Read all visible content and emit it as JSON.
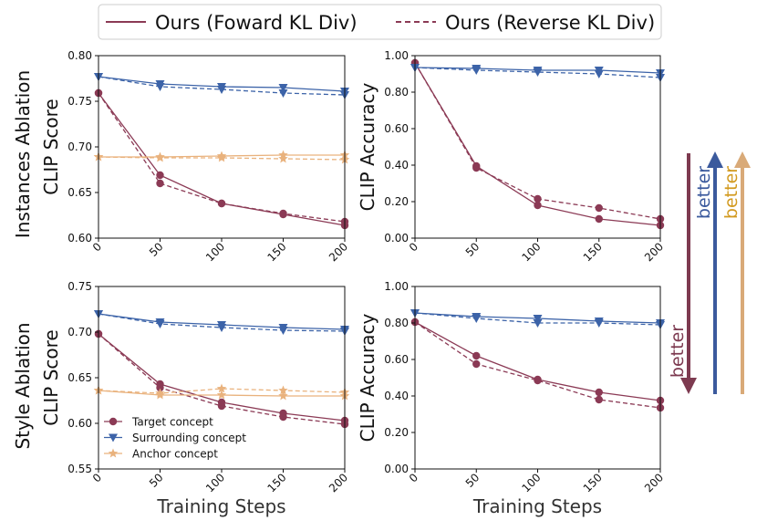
{
  "legend": {
    "items": [
      {
        "label": "Ours (Foward KL Div)",
        "style": "solid"
      },
      {
        "label": "Ours (Reverse KL Div)",
        "style": "dashed"
      }
    ]
  },
  "row_labels": [
    "Instances Ablation",
    "Style Ablation"
  ],
  "colors": {
    "target": "#8b3a55",
    "surrounding": "#3c63a8",
    "anchor": "#e9b27d",
    "arrow_target": "#7d3a50",
    "arrow_surrounding": "#3b5a9d",
    "arrow_anchor": "#d9aa78",
    "better_anchor_text": "#d29a20"
  },
  "better_labels": {
    "target": "better",
    "surrounding": "better",
    "anchor": "better"
  },
  "chart_data": [
    {
      "type": "line",
      "row": "Instances Ablation",
      "xlabel": "",
      "ylabel": "CLIP Score",
      "x": [
        0,
        50,
        100,
        150,
        200
      ],
      "xticks": [
        "0",
        "50",
        "100",
        "150",
        "200"
      ],
      "ylim": [
        0.6,
        0.8
      ],
      "yticks": [
        "0.60",
        "0.65",
        "0.70",
        "0.75",
        "0.80"
      ],
      "series": [
        {
          "name": "Target concept",
          "concept": "target",
          "style": "solid",
          "values": [
            0.759,
            0.669,
            0.638,
            0.626,
            0.614
          ]
        },
        {
          "name": "Target concept",
          "concept": "target",
          "style": "dashed",
          "values": [
            0.759,
            0.66,
            0.638,
            0.627,
            0.618
          ]
        },
        {
          "name": "Surrounding concept",
          "concept": "surrounding",
          "style": "solid",
          "values": [
            0.777,
            0.769,
            0.766,
            0.765,
            0.761
          ]
        },
        {
          "name": "Surrounding concept",
          "concept": "surrounding",
          "style": "dashed",
          "values": [
            0.777,
            0.766,
            0.763,
            0.759,
            0.757
          ]
        },
        {
          "name": "Anchor concept",
          "concept": "anchor",
          "style": "solid",
          "values": [
            0.689,
            0.689,
            0.69,
            0.691,
            0.691
          ]
        },
        {
          "name": "Anchor concept",
          "concept": "anchor",
          "style": "dashed",
          "values": [
            0.689,
            0.688,
            0.688,
            0.687,
            0.686
          ]
        }
      ]
    },
    {
      "type": "line",
      "row": "Instances Ablation",
      "xlabel": "",
      "ylabel": "CLIP Accuracy",
      "x": [
        0,
        50,
        100,
        150,
        200
      ],
      "xticks": [
        "0",
        "50",
        "100",
        "150",
        "200"
      ],
      "ylim": [
        0.0,
        1.0
      ],
      "yticks": [
        "0.00",
        "0.20",
        "0.40",
        "0.60",
        "0.80",
        "1.00"
      ],
      "series": [
        {
          "name": "Target concept",
          "concept": "target",
          "style": "solid",
          "values": [
            0.96,
            0.395,
            0.18,
            0.105,
            0.07
          ]
        },
        {
          "name": "Target concept",
          "concept": "target",
          "style": "dashed",
          "values": [
            0.96,
            0.385,
            0.215,
            0.165,
            0.105
          ]
        },
        {
          "name": "Surrounding concept",
          "concept": "surrounding",
          "style": "solid",
          "values": [
            0.935,
            0.93,
            0.92,
            0.92,
            0.905
          ]
        },
        {
          "name": "Surrounding concept",
          "concept": "surrounding",
          "style": "dashed",
          "values": [
            0.935,
            0.92,
            0.91,
            0.9,
            0.88
          ]
        }
      ]
    },
    {
      "type": "line",
      "row": "Style Ablation",
      "xlabel": "Training Steps",
      "ylabel": "CLIP Score",
      "x": [
        0,
        50,
        100,
        150,
        200
      ],
      "xticks": [
        "0",
        "50",
        "100",
        "150",
        "200"
      ],
      "ylim": [
        0.55,
        0.75
      ],
      "yticks": [
        "0.55",
        "0.60",
        "0.65",
        "0.70",
        "0.75"
      ],
      "series": [
        {
          "name": "Target concept",
          "concept": "target",
          "style": "solid",
          "values": [
            0.698,
            0.643,
            0.623,
            0.611,
            0.603
          ]
        },
        {
          "name": "Target concept",
          "concept": "target",
          "style": "dashed",
          "values": [
            0.698,
            0.639,
            0.619,
            0.607,
            0.599
          ]
        },
        {
          "name": "Surrounding concept",
          "concept": "surrounding",
          "style": "solid",
          "values": [
            0.72,
            0.711,
            0.708,
            0.705,
            0.703
          ]
        },
        {
          "name": "Surrounding concept",
          "concept": "surrounding",
          "style": "dashed",
          "values": [
            0.72,
            0.709,
            0.705,
            0.702,
            0.701
          ]
        },
        {
          "name": "Anchor concept",
          "concept": "anchor",
          "style": "solid",
          "values": [
            0.636,
            0.631,
            0.631,
            0.63,
            0.63
          ]
        },
        {
          "name": "Anchor concept",
          "concept": "anchor",
          "style": "dashed",
          "values": [
            0.636,
            0.633,
            0.638,
            0.636,
            0.634
          ]
        }
      ],
      "legend": [
        {
          "label": "Target concept",
          "concept": "target"
        },
        {
          "label": "Surrounding concept",
          "concept": "surrounding"
        },
        {
          "label": "Anchor concept",
          "concept": "anchor"
        }
      ]
    },
    {
      "type": "line",
      "row": "Style Ablation",
      "xlabel": "Training Steps",
      "ylabel": "CLIP Accuracy",
      "x": [
        0,
        50,
        100,
        150,
        200
      ],
      "xticks": [
        "0",
        "50",
        "100",
        "150",
        "200"
      ],
      "ylim": [
        0.0,
        1.0
      ],
      "yticks": [
        "0.00",
        "0.20",
        "0.40",
        "0.60",
        "0.80",
        "1.00"
      ],
      "series": [
        {
          "name": "Target concept",
          "concept": "target",
          "style": "solid",
          "values": [
            0.805,
            0.62,
            0.49,
            0.42,
            0.375
          ]
        },
        {
          "name": "Target concept",
          "concept": "target",
          "style": "dashed",
          "values": [
            0.805,
            0.575,
            0.485,
            0.38,
            0.335
          ]
        },
        {
          "name": "Surrounding concept",
          "concept": "surrounding",
          "style": "solid",
          "values": [
            0.855,
            0.835,
            0.825,
            0.81,
            0.8
          ]
        },
        {
          "name": "Surrounding concept",
          "concept": "surrounding",
          "style": "dashed",
          "values": [
            0.855,
            0.825,
            0.8,
            0.8,
            0.79
          ]
        }
      ]
    }
  ]
}
